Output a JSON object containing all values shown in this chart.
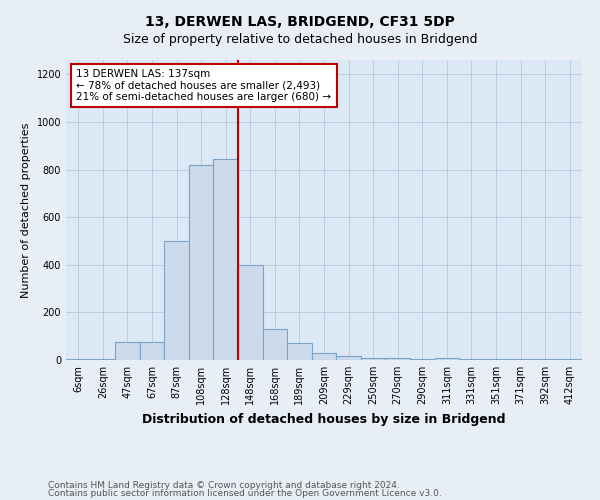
{
  "title": "13, DERWEN LAS, BRIDGEND, CF31 5DP",
  "subtitle": "Size of property relative to detached houses in Bridgend",
  "xlabel": "Distribution of detached houses by size in Bridgend",
  "ylabel": "Number of detached properties",
  "footnote1": "Contains HM Land Registry data © Crown copyright and database right 2024.",
  "footnote2": "Contains public sector information licensed under the Open Government Licence v3.0.",
  "bin_labels": [
    "6sqm",
    "26sqm",
    "47sqm",
    "67sqm",
    "87sqm",
    "108sqm",
    "128sqm",
    "148sqm",
    "168sqm",
    "189sqm",
    "209sqm",
    "229sqm",
    "250sqm",
    "270sqm",
    "290sqm",
    "311sqm",
    "331sqm",
    "351sqm",
    "371sqm",
    "392sqm",
    "412sqm"
  ],
  "bar_heights": [
    3,
    3,
    75,
    75,
    500,
    820,
    845,
    400,
    130,
    70,
    30,
    18,
    10,
    8,
    5,
    8,
    3,
    5,
    3,
    3,
    3
  ],
  "bar_color": "#ccdaeb",
  "bar_edge_color": "#7ba3c8",
  "vline_color": "#c00000",
  "vline_x_index": 7,
  "annotation_text": "13 DERWEN LAS: 137sqm\n← 78% of detached houses are smaller (2,493)\n21% of semi-detached houses are larger (680) →",
  "annotation_box_facecolor": "white",
  "annotation_box_edgecolor": "#c00000",
  "ylim": [
    0,
    1260
  ],
  "yticks": [
    0,
    200,
    400,
    600,
    800,
    1000,
    1200
  ],
  "fig_facecolor": "#e8eef5",
  "plot_facecolor": "#dce8f5",
  "grid_color": "#b8c8d8",
  "title_fontsize": 10,
  "subtitle_fontsize": 9,
  "xlabel_fontsize": 9,
  "ylabel_fontsize": 8,
  "tick_fontsize": 7,
  "annotation_fontsize": 7.5,
  "footnote_fontsize": 6.5
}
